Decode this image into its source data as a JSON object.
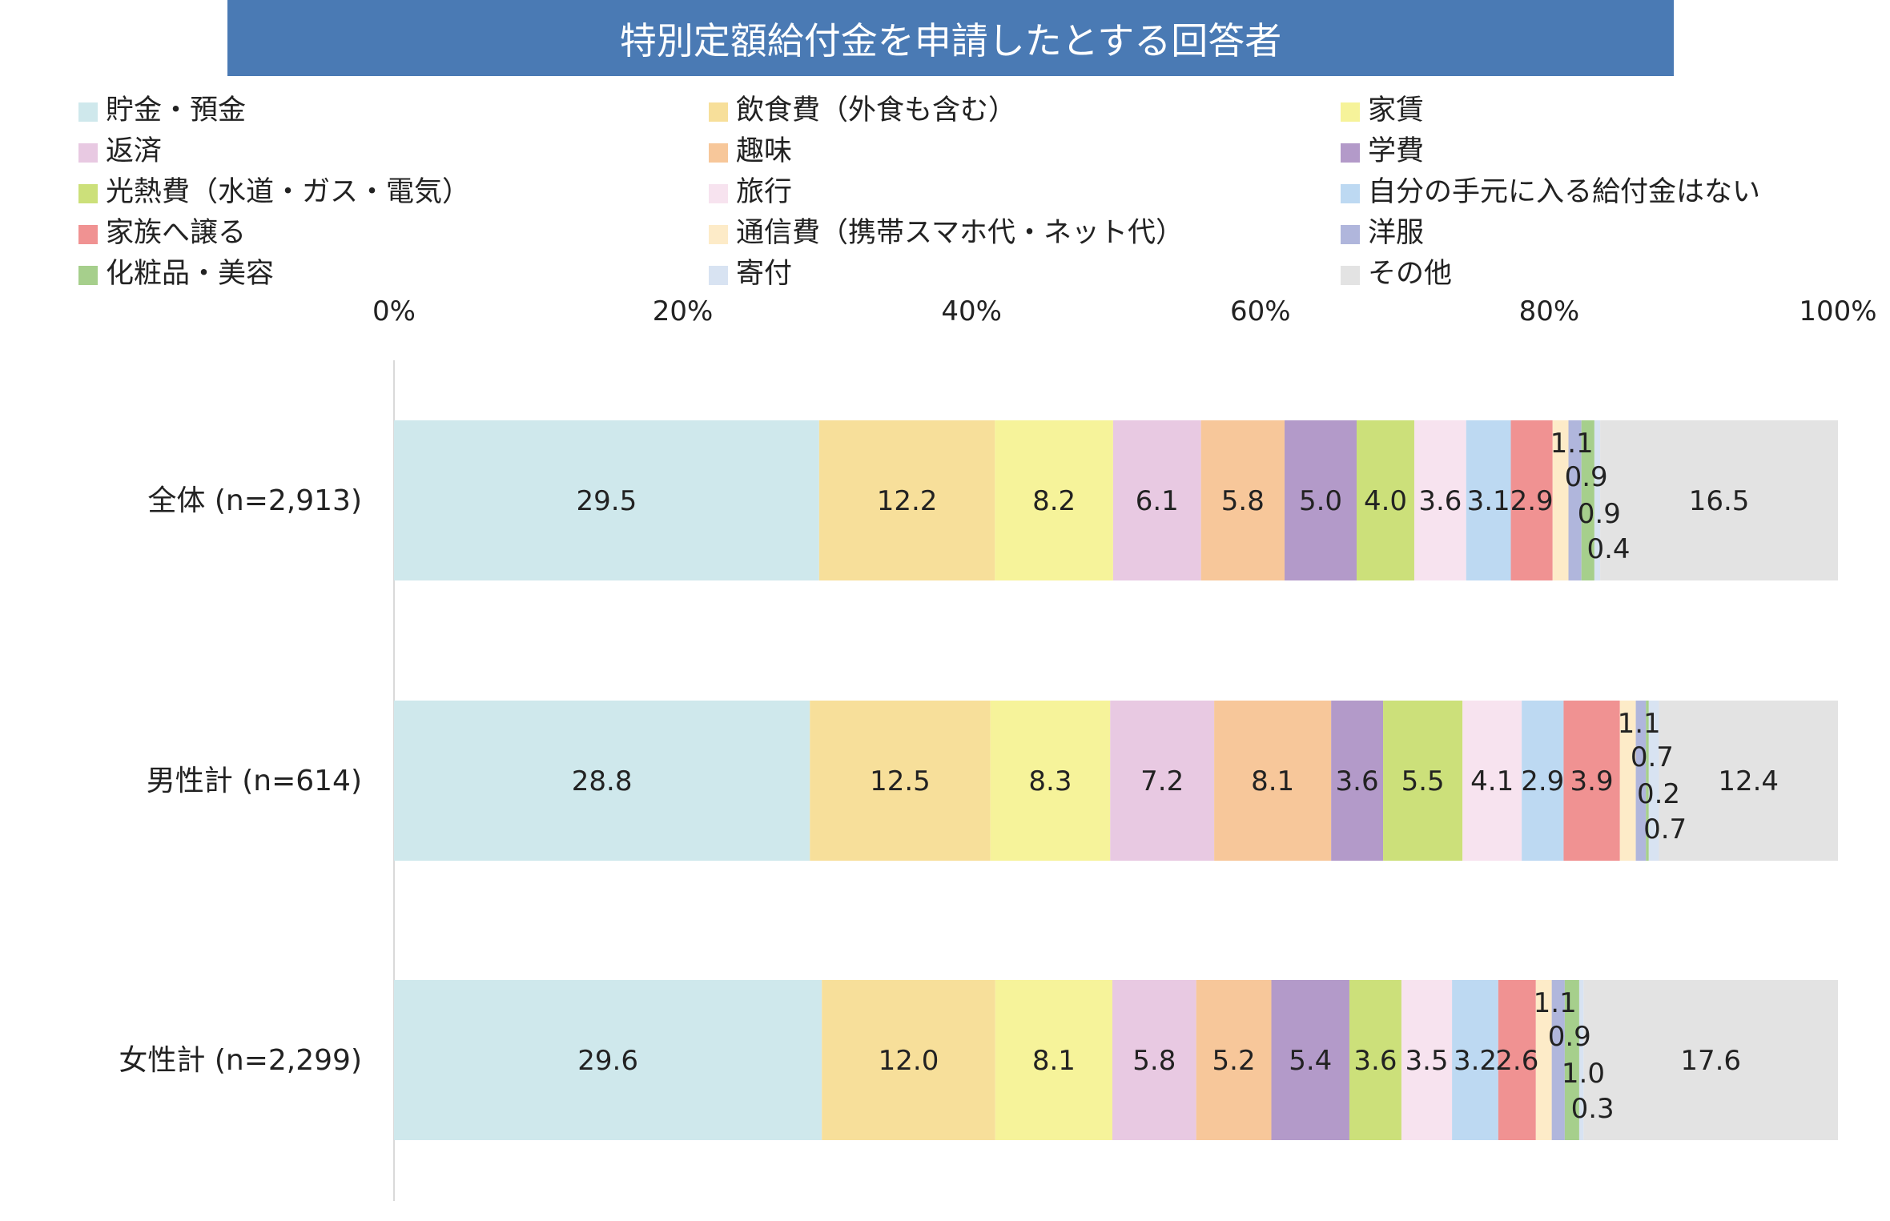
{
  "chart_data": {
    "type": "bar",
    "orientation": "horizontal",
    "stacked": "100%",
    "title": "特別定額給付金を申請したとする回答者",
    "categories": [
      "全体 (n=2,913)",
      "男性計 (n=614)",
      "女性計 (n=2,299)"
    ],
    "x_tick_labels": [
      "0%",
      "20%",
      "40%",
      "60%",
      "80%",
      "100%"
    ],
    "xlim": [
      0,
      100
    ],
    "grid": false,
    "legend_position": "top",
    "series": [
      {
        "name": "貯金・預金",
        "color": "#cfe8ec",
        "values": [
          29.5,
          28.8,
          29.6
        ]
      },
      {
        "name": "飲食費（外食も含む）",
        "color": "#f7df9a",
        "values": [
          12.2,
          12.5,
          12.0
        ]
      },
      {
        "name": "家賃",
        "color": "#f6f39a",
        "values": [
          8.2,
          8.3,
          8.1
        ]
      },
      {
        "name": "返済",
        "color": "#e8c9e2",
        "values": [
          6.1,
          7.2,
          5.8
        ]
      },
      {
        "name": "趣味",
        "color": "#f7c79a",
        "values": [
          5.8,
          8.1,
          5.2
        ]
      },
      {
        "name": "学費",
        "color": "#b39ac9",
        "values": [
          5.0,
          3.6,
          5.4
        ]
      },
      {
        "name": "光熱費（水道・ガス・電気）",
        "color": "#cce07a",
        "values": [
          4.0,
          5.5,
          3.6
        ]
      },
      {
        "name": "旅行",
        "color": "#f7e3ef",
        "values": [
          3.6,
          4.1,
          3.5
        ]
      },
      {
        "name": "自分の手元に入る給付金はない",
        "color": "#bdd9f2",
        "values": [
          3.1,
          2.9,
          3.2
        ]
      },
      {
        "name": "家族へ譲る",
        "color": "#f09292",
        "values": [
          2.9,
          3.9,
          2.6
        ]
      },
      {
        "name": "通信費（携帯スマホ代・ネット代）",
        "color": "#fdebc8",
        "values": [
          1.1,
          1.1,
          1.1
        ]
      },
      {
        "name": "洋服",
        "color": "#b0b6dc",
        "values": [
          0.9,
          0.7,
          0.9
        ]
      },
      {
        "name": "化粧品・美容",
        "color": "#a6cf8c",
        "values": [
          0.9,
          0.2,
          1.0
        ]
      },
      {
        "name": "寄付",
        "color": "#d8e3f2",
        "values": [
          0.4,
          0.7,
          0.3
        ]
      },
      {
        "name": "その他",
        "color": "#e3e3e3",
        "values": [
          16.5,
          12.4,
          17.6
        ]
      }
    ],
    "data_labels": [
      [
        "29.5",
        "12.2",
        "8.2",
        "6.1",
        "5.8",
        "5.0",
        "4.0",
        "3.6",
        "3.1",
        "2.9",
        "1.1",
        "0.9",
        "0.9",
        "0.4",
        "16.5"
      ],
      [
        "28.8",
        "12.5",
        "8.3",
        "7.2",
        "8.1",
        "3.6",
        "5.5",
        "4.1",
        "2.9",
        "3.9",
        "1.1",
        "0.7",
        "0.2",
        "0.7",
        "12.4"
      ],
      [
        "29.6",
        "12.0",
        "8.1",
        "5.8",
        "5.2",
        "5.4",
        "3.6",
        "3.5",
        "3.2",
        "2.6",
        "1.1",
        "0.9",
        "1.0",
        "0.3",
        "17.6"
      ]
    ],
    "legend": {
      "columns": [
        [
          "貯金・預金",
          "返済",
          "光熱費（水道・ガス・電気）",
          "家族へ譲る",
          "化粧品・美容"
        ],
        [
          "飲食費（外食も含む）",
          "趣味",
          "旅行",
          "通信費（携帯スマホ代・ネット代）",
          "寄付"
        ],
        [
          "家賃",
          "学費",
          "自分の手元に入る給付金はない",
          "洋服",
          "その他"
        ]
      ]
    }
  }
}
